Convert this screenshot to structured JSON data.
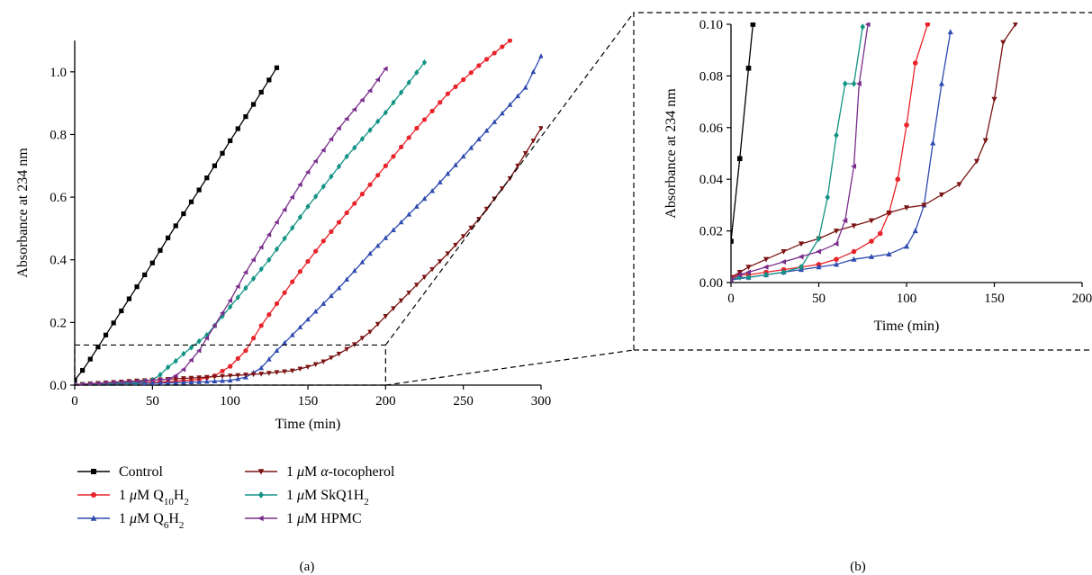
{
  "figure": {
    "panel_a_label": "(a)",
    "panel_b_label": "(b)"
  },
  "chart_data": [
    {
      "type": "line",
      "panel": "(a)",
      "xlabel": "Time (min)",
      "ylabel": "Absorbance at 234 nm",
      "xlim": [
        0,
        300
      ],
      "ylim": [
        0,
        1.1
      ],
      "xticks": [
        0,
        50,
        100,
        150,
        200,
        250,
        300
      ],
      "yticks": [
        0.0,
        0.2,
        0.4,
        0.6,
        0.8,
        1.0
      ],
      "ytick_labels": [
        "0.0",
        "0.2",
        "0.4",
        "0.6",
        "0.8",
        "1.0"
      ],
      "grid": false,
      "legend_position": "bottom",
      "legend": [
        {
          "prefix": "",
          "italic": "",
          "main": "Control",
          "sub": "",
          "suffix": ""
        },
        {
          "prefix": "1 ",
          "italic": "μ",
          "main": "M Q",
          "sub": "10",
          "suffix": "H₂"
        },
        {
          "prefix": "1 ",
          "italic": "μ",
          "main": "M Q",
          "sub": "6",
          "suffix": "H₂"
        },
        {
          "prefix": "1 ",
          "italic": "μ",
          "main": "M ",
          "sub": "",
          "suffix": "",
          "italic2": "α",
          "tail": "-tocopherol"
        },
        {
          "prefix": "1 ",
          "italic": "μ",
          "main": "M SkQ1H",
          "sub": "2",
          "suffix": ""
        },
        {
          "prefix": "1 ",
          "italic": "μ",
          "main": "M HPMC",
          "sub": "",
          "suffix": ""
        }
      ],
      "series": [
        {
          "name": "Control",
          "color": "#000000",
          "marker": "square",
          "x": [
            0,
            5,
            10,
            20,
            30,
            40,
            50,
            60,
            70,
            80,
            90,
            100,
            110,
            120,
            130
          ],
          "y": [
            0.016,
            0.047,
            0.083,
            0.16,
            0.237,
            0.314,
            0.39,
            0.47,
            0.547,
            0.623,
            0.7,
            0.78,
            0.857,
            0.935,
            1.013
          ]
        },
        {
          "name": "1 μM Q10H2",
          "color": "#e8232a",
          "marker": "circle",
          "x": [
            0,
            20,
            40,
            60,
            80,
            90,
            100,
            110,
            120,
            140,
            160,
            180,
            200,
            220,
            240,
            260,
            280
          ],
          "y": [
            0.002,
            0.004,
            0.007,
            0.011,
            0.018,
            0.03,
            0.06,
            0.11,
            0.19,
            0.33,
            0.46,
            0.58,
            0.7,
            0.82,
            0.93,
            1.02,
            1.1
          ]
        },
        {
          "name": "1 μM Q6H2",
          "color": "#2e4bb0",
          "marker": "triangle-up",
          "x": [
            0,
            20,
            40,
            60,
            80,
            100,
            110,
            120,
            130,
            150,
            170,
            190,
            210,
            230,
            250,
            270,
            290,
            300
          ],
          "y": [
            0.001,
            0.003,
            0.005,
            0.007,
            0.01,
            0.015,
            0.025,
            0.055,
            0.11,
            0.21,
            0.31,
            0.42,
            0.52,
            0.62,
            0.73,
            0.84,
            0.95,
            1.05
          ]
        },
        {
          "name": "1 μM α-tocopherol",
          "color": "#7b1414",
          "marker": "triangle-down",
          "x": [
            0,
            20,
            40,
            60,
            80,
            100,
            120,
            140,
            150,
            160,
            170,
            180,
            190,
            200,
            220,
            240,
            260,
            280,
            300
          ],
          "y": [
            0.002,
            0.008,
            0.014,
            0.019,
            0.024,
            0.03,
            0.036,
            0.046,
            0.058,
            0.075,
            0.1,
            0.13,
            0.17,
            0.22,
            0.32,
            0.42,
            0.53,
            0.66,
            0.82
          ]
        },
        {
          "name": "1 μM SkQ1H2",
          "color": "#129385",
          "marker": "diamond",
          "x": [
            0,
            20,
            40,
            50,
            55,
            60,
            65,
            70,
            75,
            85,
            100,
            125,
            150,
            175,
            200,
            225
          ],
          "y": [
            0.001,
            0.004,
            0.008,
            0.017,
            0.033,
            0.057,
            0.077,
            0.1,
            0.12,
            0.16,
            0.25,
            0.4,
            0.57,
            0.73,
            0.87,
            1.03
          ]
        },
        {
          "name": "1 μM HPMC",
          "color": "#7a2e8c",
          "marker": "triangle-left",
          "x": [
            0,
            20,
            40,
            60,
            65,
            70,
            75,
            80,
            90,
            100,
            110,
            130,
            150,
            170,
            190,
            200
          ],
          "y": [
            0.001,
            0.007,
            0.012,
            0.019,
            0.03,
            0.05,
            0.08,
            0.11,
            0.19,
            0.27,
            0.36,
            0.52,
            0.68,
            0.82,
            0.94,
            1.01
          ]
        }
      ]
    },
    {
      "type": "line",
      "panel": "(b)",
      "xlabel": "Time (min)",
      "ylabel": "Absorbance at 234 nm",
      "xlim": [
        0,
        200
      ],
      "ylim": [
        0,
        0.1
      ],
      "xticks": [
        0,
        50,
        100,
        150,
        200
      ],
      "yticks": [
        0.0,
        0.02,
        0.04,
        0.06,
        0.08,
        0.1
      ],
      "ytick_labels": [
        "0.00",
        "0.02",
        "0.04",
        "0.06",
        "0.08",
        "0.10"
      ],
      "grid": false,
      "series": [
        {
          "name": "Control",
          "color": "#000000",
          "marker": "square",
          "x": [
            0,
            5,
            10,
            12.5
          ],
          "y": [
            0.016,
            0.048,
            0.083,
            0.1
          ]
        },
        {
          "name": "1 μM Q10H2",
          "color": "#e8232a",
          "marker": "circle",
          "x": [
            0,
            5,
            10,
            20,
            30,
            40,
            50,
            60,
            70,
            80,
            85,
            90,
            95,
            100,
            105,
            112
          ],
          "y": [
            0.002,
            0.003,
            0.003,
            0.004,
            0.005,
            0.006,
            0.007,
            0.009,
            0.012,
            0.016,
            0.019,
            0.027,
            0.04,
            0.061,
            0.085,
            0.1
          ]
        },
        {
          "name": "1 μM Q6H2",
          "color": "#2e4bb0",
          "marker": "triangle-up",
          "x": [
            0,
            10,
            20,
            30,
            40,
            50,
            60,
            70,
            80,
            90,
            100,
            105,
            110,
            115,
            120,
            125
          ],
          "y": [
            0.001,
            0.002,
            0.003,
            0.004,
            0.005,
            0.006,
            0.007,
            0.009,
            0.01,
            0.011,
            0.014,
            0.02,
            0.03,
            0.054,
            0.077,
            0.097
          ]
        },
        {
          "name": "1 μM α-tocopherol",
          "color": "#7b1414",
          "marker": "triangle-down",
          "x": [
            0,
            5,
            10,
            20,
            30,
            40,
            50,
            60,
            70,
            80,
            90,
            100,
            110,
            120,
            130,
            140,
            145,
            150,
            155,
            162
          ],
          "y": [
            0.002,
            0.004,
            0.006,
            0.009,
            0.012,
            0.015,
            0.017,
            0.02,
            0.022,
            0.024,
            0.027,
            0.029,
            0.03,
            0.034,
            0.038,
            0.047,
            0.055,
            0.071,
            0.093,
            0.1
          ]
        },
        {
          "name": "1 μM SkQ1H2",
          "color": "#129385",
          "marker": "diamond",
          "x": [
            0,
            5,
            10,
            20,
            30,
            40,
            50,
            55,
            60,
            65,
            70,
            75
          ],
          "y": [
            0.001,
            0.002,
            0.002,
            0.003,
            0.004,
            0.006,
            0.017,
            0.033,
            0.057,
            0.077,
            0.077,
            0.099
          ]
        },
        {
          "name": "1 μM HPMC",
          "color": "#7a2e8c",
          "marker": "triangle-left",
          "x": [
            0,
            5,
            10,
            20,
            30,
            40,
            50,
            60,
            65,
            70,
            73,
            78
          ],
          "y": [
            0.001,
            0.003,
            0.004,
            0.006,
            0.008,
            0.01,
            0.012,
            0.015,
            0.024,
            0.045,
            0.077,
            0.1
          ]
        }
      ]
    }
  ]
}
